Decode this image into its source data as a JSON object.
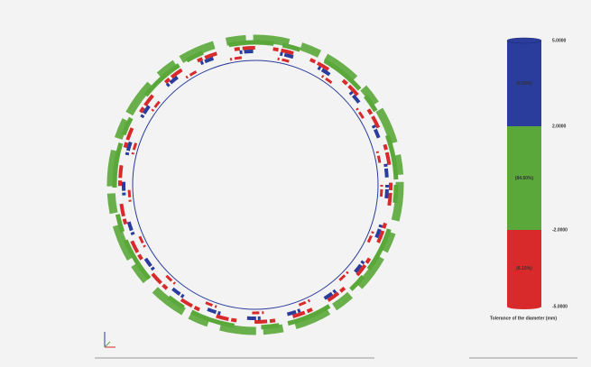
{
  "legend": {
    "caption": "Tolerance of the diameter (mm)",
    "levels": [
      "5.0000",
      "2.0000",
      "-2.0000",
      "-5.0000"
    ],
    "segments": [
      {
        "label": "(9.30%)",
        "color": "#2a3c9c"
      },
      {
        "label": "(84.60%)",
        "color": "#5aa83a"
      },
      {
        "label": "(6.10%)",
        "color": "#d82a2a"
      }
    ]
  }
}
